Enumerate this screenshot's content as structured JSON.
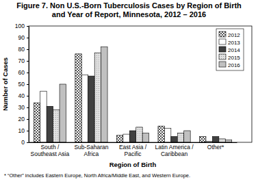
{
  "chart_data": {
    "type": "bar",
    "title": "Figure 7. Non U.S.-Born Tuberculosis Cases by Region of Birth and Year of Report, Minnesota, 2012 – 2016",
    "x_label": "Region of Birth",
    "y_label": "Number of Cases",
    "footnote": "* “Other” includes Eastern Europe, North Africa/Middle East, and Western Europe.",
    "categories": [
      "South / Southeast Asia",
      "Sub-Saharan Africa",
      "East Asia / Pacific",
      "Latin America / Caribbean",
      "Other*"
    ],
    "series": [
      {
        "name": "2012",
        "color": "#555555",
        "values": [
          34,
          76,
          6,
          14,
          5
        ]
      },
      {
        "name": "2013",
        "color": "#ffffff",
        "values": [
          44,
          58,
          7,
          12,
          1
        ]
      },
      {
        "name": "2014",
        "color": "#404040",
        "values": [
          31,
          57,
          10,
          5,
          5
        ]
      },
      {
        "name": "2015",
        "color": "#999999",
        "values": [
          28,
          77,
          13,
          8,
          3
        ]
      },
      {
        "name": "2016",
        "color": "#c0c0c0",
        "values": [
          50,
          82,
          8,
          10,
          2
        ]
      }
    ],
    "ylim": [
      0,
      100
    ],
    "yticks": [
      0,
      10,
      20,
      30,
      40,
      50,
      60,
      70,
      80,
      90,
      100
    ],
    "grid": false,
    "legend": "upper right"
  }
}
